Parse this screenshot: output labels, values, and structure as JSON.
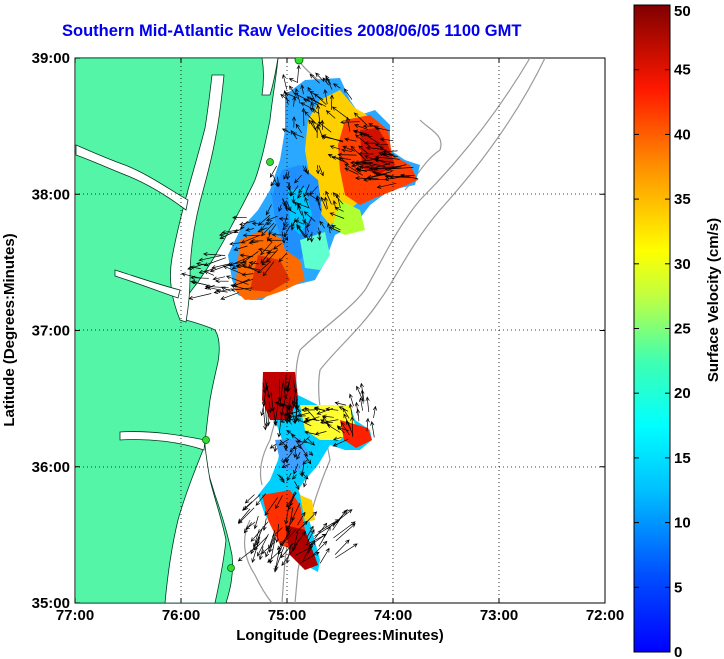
{
  "map": {
    "title": "Southern Mid-Atlantic Raw Velocities 2008/06/05 1100 GMT",
    "xlabel": "Longitude (Degrees:Minutes)",
    "ylabel": "Latitude (Degrees:Minutes)",
    "x_ticks": [
      "77:00",
      "76:00",
      "75:00",
      "74:00",
      "73:00",
      "72:00"
    ],
    "y_ticks": [
      "39:00",
      "38:00",
      "37:00",
      "36:00",
      "35:00"
    ],
    "land_color": "#55f5a8",
    "station_color": "#33dd33"
  },
  "colorbar": {
    "label": "Surface Velocity (cm/s)",
    "ticks": [
      "0",
      "5",
      "10",
      "15",
      "20",
      "25",
      "30",
      "35",
      "40",
      "45",
      "50"
    ],
    "colormap": "jet",
    "range": [
      0,
      50
    ]
  }
}
